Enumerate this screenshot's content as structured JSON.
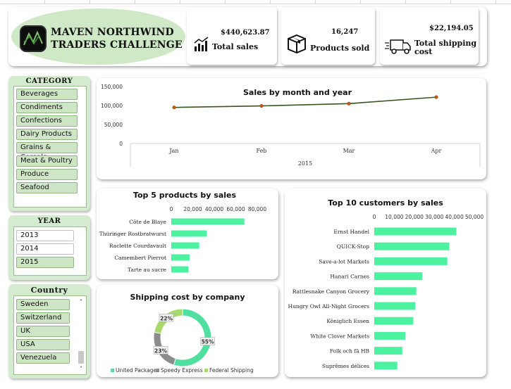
{
  "header": {
    "title_line1": "MAVEN NORTHWIND",
    "title_line2": "TRADERS CHALLENGE",
    "kpis": [
      {
        "value": "$440,623.87",
        "label": "Total sales",
        "icon": "bar-chart-icon"
      },
      {
        "value": "16,247",
        "label": "Products sold",
        "icon": "box-icon"
      },
      {
        "value": "$22,194.05",
        "label": "Total shipping cost",
        "label_line1": "Total shipping",
        "label_line2": "cost",
        "icon": "truck-icon"
      }
    ]
  },
  "slicers": {
    "category": {
      "title": "CATEGORY",
      "items": [
        "Beverages",
        "Condiments",
        "Confections",
        "Dairy Products",
        "Grains & Cereals",
        "Meat & Poultry",
        "Produce",
        "Seafood"
      ]
    },
    "year": {
      "title": "YEAR",
      "items": [
        "2013",
        "2014",
        "2015"
      ],
      "selected": "2015"
    },
    "country": {
      "title": "Country",
      "items": [
        "Sweden",
        "Switzerland",
        "UK",
        "USA",
        "Venezuela"
      ]
    }
  },
  "chart_data": [
    {
      "type": "line",
      "title": "Sales by month and year",
      "categories": [
        "Jan",
        "Feb",
        "Mar",
        "Apr"
      ],
      "values": [
        95000,
        99000,
        105000,
        122000
      ],
      "xlabel": "2015",
      "ylim": [
        0,
        150000
      ],
      "yticks": [
        "150,000",
        "100,000",
        "50,000",
        "0"
      ],
      "line_color": "#375623",
      "marker_color": "#c65911"
    },
    {
      "type": "bar",
      "orientation": "horizontal",
      "title": "Top 5 products by sales",
      "categories": [
        "Côte de Blaye",
        "Thüringer Rostbratwurst",
        "Raclette Courdavault",
        "Camembert Pierrot",
        "Tarte au sucre"
      ],
      "values": [
        68000,
        33000,
        26000,
        17000,
        16000
      ],
      "xlim": [
        0,
        80000
      ],
      "xticks": [
        "0",
        "20,000",
        "40,000",
        "60,000",
        "80,000"
      ],
      "bar_color": "#4df2a0"
    },
    {
      "type": "bar",
      "orientation": "horizontal",
      "title": "Top 10 customers by sales",
      "categories": [
        "Ernst Handel",
        "QUICK-Stop",
        "Save-a-lot Markets",
        "Hanari Carnes",
        "Rattlesnake Canyon Grocery",
        "Hungry Owl All-Night Grocers",
        "Königlich Essen",
        "White Clover Markets",
        "Folk och fä HB",
        "Suprêmes délices"
      ],
      "values": [
        41000,
        37500,
        36500,
        24000,
        21000,
        20500,
        19500,
        15500,
        14000,
        11500
      ],
      "xlim": [
        0,
        50000
      ],
      "xticks": [
        "0",
        "10,000",
        "20,000",
        "30,000",
        "40,000",
        "50,000"
      ],
      "bar_color": "#4df2a0"
    },
    {
      "type": "pie",
      "subtype": "donut",
      "title": "Shipping cost by company",
      "categories": [
        "United Package",
        "Speedy Express",
        "Federal Shipping"
      ],
      "values": [
        55,
        23,
        22
      ],
      "labels": [
        "55%",
        "23%",
        "22%"
      ],
      "colors": [
        "#4fe0a0",
        "#8c8c8c",
        "#a6d96a"
      ]
    }
  ]
}
